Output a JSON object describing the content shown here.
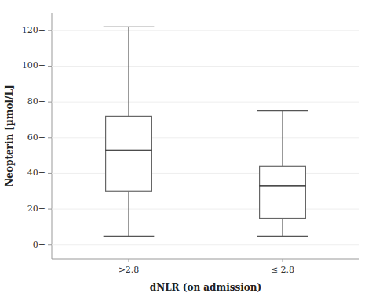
{
  "chart_data": {
    "type": "box",
    "categories": [
      ">2.8",
      "≤ 2.8"
    ],
    "boxes": [
      {
        "whisker_low": 5,
        "q1": 30,
        "median": 53,
        "q3": 72,
        "whisker_high": 122
      },
      {
        "whisker_low": 5,
        "q1": 15,
        "median": 33,
        "q3": 44,
        "whisker_high": 75
      }
    ],
    "xlabel": "dNLR (on admission)",
    "ylabel": "Neopterin [µmol/L]",
    "ylim": [
      -8,
      130
    ],
    "yticks": [
      {
        "value": 0,
        "label": "0−"
      },
      {
        "value": 20,
        "label": "20−"
      },
      {
        "value": 40,
        "label": "40−"
      },
      {
        "value": 60,
        "label": "60−"
      },
      {
        "value": 80,
        "label": "80−"
      },
      {
        "value": 100,
        "label": "100−"
      },
      {
        "value": 120,
        "label": "120−"
      }
    ]
  }
}
